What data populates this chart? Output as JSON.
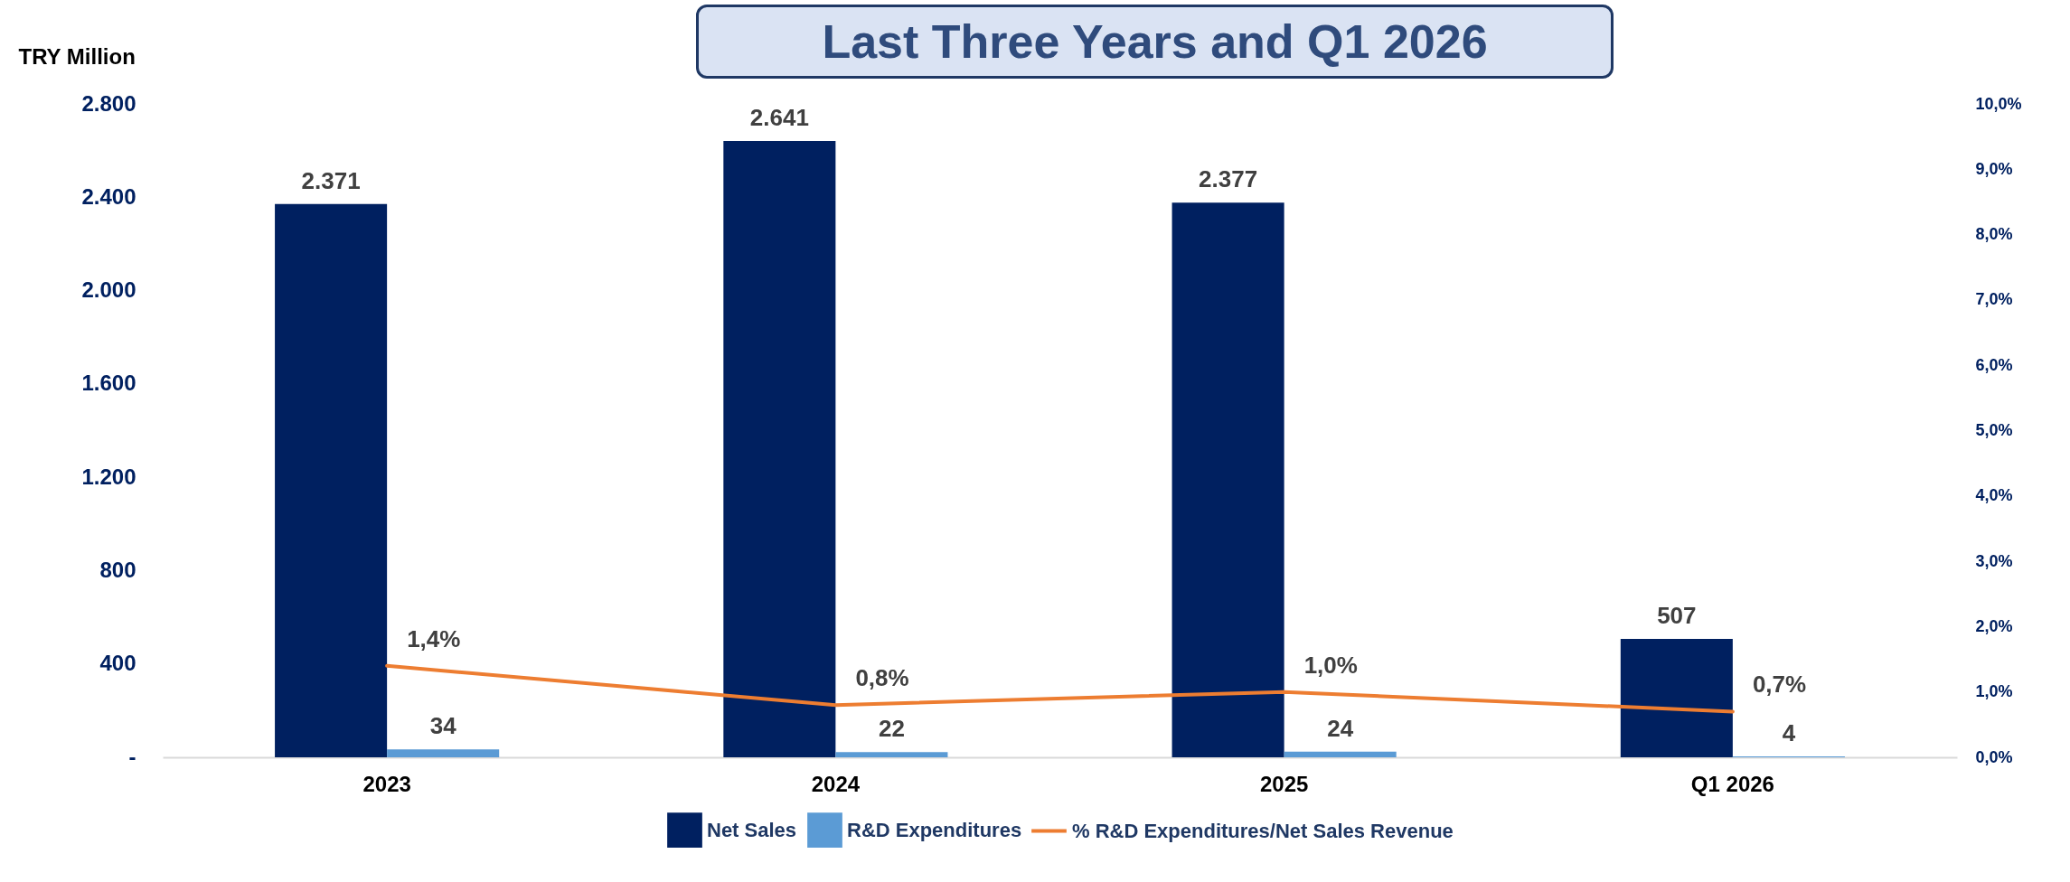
{
  "chart_data": {
    "type": "bar",
    "title": "Last Three Years and Q1 2026",
    "ylabel": "TRY Million",
    "categories": [
      "2023",
      "2024",
      "2025",
      "Q1 2026"
    ],
    "series": [
      {
        "name": "Net Sales",
        "color": "#002060",
        "values": [
          2371,
          2641,
          2377,
          507
        ],
        "value_labels": [
          "2.371",
          "2.641",
          "2.377",
          "507"
        ]
      },
      {
        "name": "R&D Expenditures",
        "color": "#5b9bd5",
        "values": [
          34,
          22,
          24,
          4
        ],
        "value_labels": [
          "34",
          "22",
          "24",
          "4"
        ]
      },
      {
        "name": "% R&D Expenditures/Net Sales Revenue",
        "type": "line",
        "axis": "y2",
        "color": "#ed7d31",
        "values": [
          1.4,
          0.8,
          1.0,
          0.7
        ],
        "value_labels": [
          "1,4%",
          "0,8%",
          "1,0%",
          "0,7%"
        ]
      }
    ],
    "ylim": [
      0,
      2800
    ],
    "yticks": [
      {
        "value": 0,
        "label": "-"
      },
      400,
      800,
      {
        "value": 1200,
        "label": "1.200"
      },
      {
        "value": 1600,
        "label": "1.600"
      },
      {
        "value": 2000,
        "label": "2.000"
      },
      {
        "value": 2400,
        "label": "2.400"
      },
      {
        "value": 2800,
        "label": "2.800"
      }
    ],
    "y2lim": [
      0,
      10
    ],
    "y2ticks": [
      {
        "value": 0,
        "label": "0,0%"
      },
      {
        "value": 1,
        "label": "1,0%"
      },
      {
        "value": 2,
        "label": "2,0%"
      },
      {
        "value": 3,
        "label": "3,0%"
      },
      {
        "value": 4,
        "label": "4,0%"
      },
      {
        "value": 5,
        "label": "5,0%"
      },
      {
        "value": 6,
        "label": "6,0%"
      },
      {
        "value": 7,
        "label": "7,0%"
      },
      {
        "value": 8,
        "label": "8,0%"
      },
      {
        "value": 9,
        "label": "9,0%"
      },
      {
        "value": 10,
        "label": "10,0%"
      }
    ],
    "grid": false,
    "legend": "bottom"
  }
}
